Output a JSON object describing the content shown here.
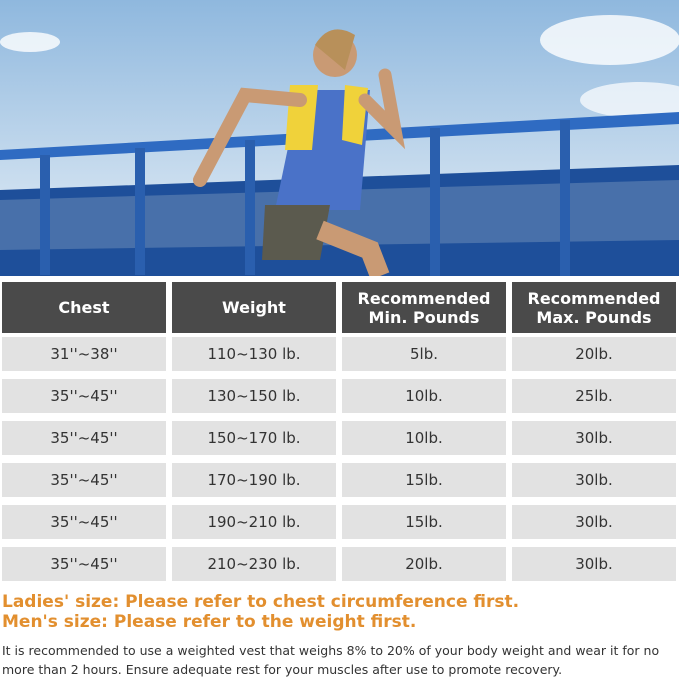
{
  "table": {
    "headers": [
      "Chest",
      "Weight",
      "Recommended\nMin. Pounds",
      "Recommended\nMax. Pounds"
    ],
    "rows": [
      [
        "31''~38''",
        "110~130 lb.",
        "5lb.",
        "20lb."
      ],
      [
        "35''~45''",
        "130~150 lb.",
        "10lb.",
        "25lb."
      ],
      [
        "35''~45''",
        "150~170 lb.",
        "10lb.",
        "30lb."
      ],
      [
        "35''~45''",
        "170~190 lb.",
        "15lb.",
        "30lb."
      ],
      [
        "35''~45''",
        "190~210 lb.",
        "15lb.",
        "30lb."
      ],
      [
        "35''~45''",
        "210~230 lb.",
        "20lb.",
        "30lb."
      ]
    ]
  },
  "notes": {
    "ladies": "Ladies' size: Please refer to chest circumference first.",
    "mens": "Men's size: Please refer to the weight first.",
    "paragraph": "It is recommended to use a weighted vest that weighs 8% to 20% of your body weight and wear it for no more than 2 hours. Ensure adequate rest for your muscles after use to promote recovery."
  },
  "colors": {
    "header": "#4a4a4a",
    "row": "#e2e2e2",
    "accent": "#e28f2f"
  }
}
